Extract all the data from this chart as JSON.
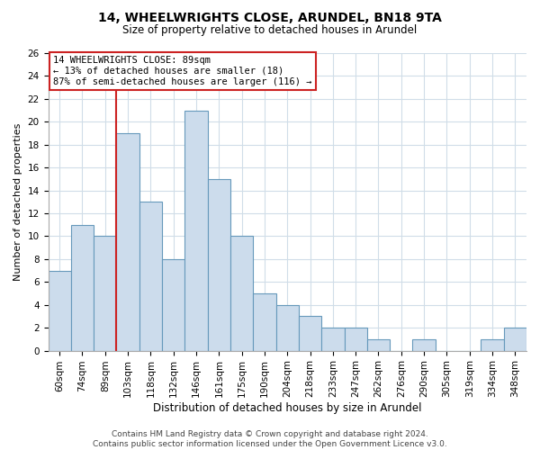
{
  "title": "14, WHEELWRIGHTS CLOSE, ARUNDEL, BN18 9TA",
  "subtitle": "Size of property relative to detached houses in Arundel",
  "xlabel": "Distribution of detached houses by size in Arundel",
  "ylabel": "Number of detached properties",
  "bar_labels": [
    "60sqm",
    "74sqm",
    "89sqm",
    "103sqm",
    "118sqm",
    "132sqm",
    "146sqm",
    "161sqm",
    "175sqm",
    "190sqm",
    "204sqm",
    "218sqm",
    "233sqm",
    "247sqm",
    "262sqm",
    "276sqm",
    "290sqm",
    "305sqm",
    "319sqm",
    "334sqm",
    "348sqm"
  ],
  "bar_values": [
    7,
    11,
    10,
    19,
    13,
    8,
    21,
    15,
    10,
    5,
    4,
    3,
    2,
    2,
    1,
    0,
    1,
    0,
    0,
    1,
    2
  ],
  "bar_color": "#ccdcec",
  "bar_edge_color": "#6699bb",
  "vline_color": "#cc2222",
  "vline_index": 2,
  "annotation_box_text": "14 WHEELWRIGHTS CLOSE: 89sqm\n← 13% of detached houses are smaller (18)\n87% of semi-detached houses are larger (116) →",
  "annotation_box_color": "#cc2222",
  "ylim": [
    0,
    26
  ],
  "yticks": [
    0,
    2,
    4,
    6,
    8,
    10,
    12,
    14,
    16,
    18,
    20,
    22,
    24,
    26
  ],
  "footer_line1": "Contains HM Land Registry data © Crown copyright and database right 2024.",
  "footer_line2": "Contains public sector information licensed under the Open Government Licence v3.0.",
  "background_color": "#ffffff",
  "grid_color": "#d0dde8",
  "title_fontsize": 10,
  "subtitle_fontsize": 8.5,
  "xlabel_fontsize": 8.5,
  "ylabel_fontsize": 8,
  "tick_fontsize": 7.5,
  "annotation_fontsize": 7.5,
  "footer_fontsize": 6.5
}
